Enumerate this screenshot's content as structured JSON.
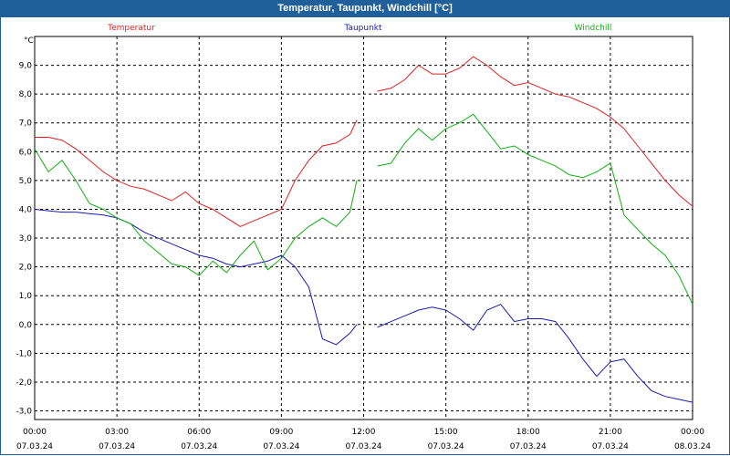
{
  "window": {
    "title": "Temperatur, Taupunkt, Windchill [°C]"
  },
  "colors": {
    "titlebar": "#1f5f9a",
    "temperature": "#e02020",
    "dewpoint": "#1a1ab0",
    "windchill": "#10b010",
    "grid": "#000000"
  },
  "chart_data": {
    "type": "line",
    "title": "Temperatur, Taupunkt, Windchill [°C]",
    "y_unit_label": "°C",
    "xlabel": "",
    "ylabel": "°C",
    "x_range_hours": [
      0,
      24
    ],
    "ylim": [
      -3.3,
      10.0
    ],
    "grid": true,
    "legend_placement": "top",
    "y_ticks": [
      "9,0",
      "8,0",
      "7,0",
      "6,0",
      "5,0",
      "4,0",
      "3,0",
      "2,0",
      "1,0",
      "0,0",
      "-1,0",
      "-2,0",
      "-3,0"
    ],
    "y_tick_values": [
      9,
      8,
      7,
      6,
      5,
      4,
      3,
      2,
      1,
      0,
      -1,
      -2,
      -3
    ],
    "x_ticks": [
      {
        "time": "00:00",
        "date": "07.03.24",
        "hour": 0
      },
      {
        "time": "03:00",
        "date": "07.03.24",
        "hour": 3
      },
      {
        "time": "06:00",
        "date": "07.03.24",
        "hour": 6
      },
      {
        "time": "09:00",
        "date": "07.03.24",
        "hour": 9
      },
      {
        "time": "12:00",
        "date": "07.03.24",
        "hour": 12
      },
      {
        "time": "15:00",
        "date": "07.03.24",
        "hour": 15
      },
      {
        "time": "18:00",
        "date": "07.03.24",
        "hour": 18
      },
      {
        "time": "21:00",
        "date": "07.03.24",
        "hour": 21
      },
      {
        "time": "00:00",
        "date": "08.03.24",
        "hour": 24
      }
    ],
    "series": [
      {
        "name": "Temperatur",
        "color": "#e02020",
        "points": [
          [
            0.0,
            6.5
          ],
          [
            0.5,
            6.5
          ],
          [
            1.0,
            6.4
          ],
          [
            1.5,
            6.1
          ],
          [
            2.0,
            5.7
          ],
          [
            2.5,
            5.3
          ],
          [
            3.0,
            5.0
          ],
          [
            3.5,
            4.8
          ],
          [
            4.0,
            4.7
          ],
          [
            4.5,
            4.5
          ],
          [
            5.0,
            4.3
          ],
          [
            5.5,
            4.6
          ],
          [
            6.0,
            4.2
          ],
          [
            6.5,
            4.0
          ],
          [
            7.0,
            3.7
          ],
          [
            7.5,
            3.4
          ],
          [
            8.0,
            3.6
          ],
          [
            8.5,
            3.8
          ],
          [
            9.0,
            4.0
          ],
          [
            9.5,
            5.0
          ],
          [
            10.0,
            5.7
          ],
          [
            10.5,
            6.2
          ],
          [
            11.0,
            6.3
          ],
          [
            11.5,
            6.6
          ],
          [
            11.75,
            7.1
          ],
          null,
          [
            12.5,
            8.1
          ],
          [
            13.0,
            8.2
          ],
          [
            13.5,
            8.5
          ],
          [
            14.0,
            9.0
          ],
          [
            14.5,
            8.7
          ],
          [
            15.0,
            8.7
          ],
          [
            15.5,
            8.9
          ],
          [
            16.0,
            9.3
          ],
          [
            16.5,
            9.0
          ],
          [
            17.0,
            8.6
          ],
          [
            17.5,
            8.3
          ],
          [
            18.0,
            8.4
          ],
          [
            18.5,
            8.2
          ],
          [
            19.0,
            8.0
          ],
          [
            19.5,
            7.9
          ],
          [
            20.0,
            7.7
          ],
          [
            20.5,
            7.5
          ],
          [
            21.0,
            7.2
          ],
          [
            21.5,
            6.8
          ],
          [
            22.0,
            6.2
          ],
          [
            22.5,
            5.6
          ],
          [
            23.0,
            5.0
          ],
          [
            23.5,
            4.5
          ],
          [
            24.0,
            4.1
          ]
        ]
      },
      {
        "name": "Taupunkt",
        "color": "#1a1ab0",
        "points": [
          [
            0.0,
            4.0
          ],
          [
            0.5,
            3.95
          ],
          [
            1.0,
            3.9
          ],
          [
            1.5,
            3.9
          ],
          [
            2.0,
            3.85
          ],
          [
            2.5,
            3.8
          ],
          [
            3.0,
            3.7
          ],
          [
            3.5,
            3.5
          ],
          [
            4.0,
            3.2
          ],
          [
            4.5,
            3.0
          ],
          [
            5.0,
            2.8
          ],
          [
            5.5,
            2.6
          ],
          [
            6.0,
            2.4
          ],
          [
            6.5,
            2.3
          ],
          [
            7.0,
            2.1
          ],
          [
            7.5,
            2.0
          ],
          [
            8.0,
            2.1
          ],
          [
            8.5,
            2.2
          ],
          [
            9.0,
            2.4
          ],
          [
            9.5,
            2.0
          ],
          [
            10.0,
            1.3
          ],
          [
            10.5,
            -0.5
          ],
          [
            11.0,
            -0.7
          ],
          [
            11.5,
            -0.3
          ],
          [
            11.75,
            0.0
          ],
          null,
          [
            12.5,
            -0.1
          ],
          [
            13.0,
            0.1
          ],
          [
            13.5,
            0.3
          ],
          [
            14.0,
            0.5
          ],
          [
            14.5,
            0.6
          ],
          [
            15.0,
            0.5
          ],
          [
            15.5,
            0.2
          ],
          [
            16.0,
            -0.2
          ],
          [
            16.5,
            0.5
          ],
          [
            17.0,
            0.7
          ],
          [
            17.5,
            0.1
          ],
          [
            18.0,
            0.2
          ],
          [
            18.5,
            0.2
          ],
          [
            19.0,
            0.1
          ],
          [
            19.5,
            -0.5
          ],
          [
            20.0,
            -1.2
          ],
          [
            20.5,
            -1.8
          ],
          [
            21.0,
            -1.3
          ],
          [
            21.5,
            -1.2
          ],
          [
            22.0,
            -1.8
          ],
          [
            22.5,
            -2.3
          ],
          [
            23.0,
            -2.5
          ],
          [
            23.5,
            -2.6
          ],
          [
            24.0,
            -2.7
          ]
        ]
      },
      {
        "name": "Windchill",
        "color": "#10b010",
        "points": [
          [
            0.0,
            6.1
          ],
          [
            0.5,
            5.3
          ],
          [
            1.0,
            5.7
          ],
          [
            1.5,
            5.0
          ],
          [
            2.0,
            4.2
          ],
          [
            2.5,
            4.0
          ],
          [
            3.0,
            3.7
          ],
          [
            3.5,
            3.5
          ],
          [
            4.0,
            2.9
          ],
          [
            4.5,
            2.5
          ],
          [
            5.0,
            2.1
          ],
          [
            5.5,
            2.0
          ],
          [
            6.0,
            1.7
          ],
          [
            6.5,
            2.2
          ],
          [
            7.0,
            1.8
          ],
          [
            7.5,
            2.4
          ],
          [
            8.0,
            2.9
          ],
          [
            8.5,
            1.9
          ],
          [
            9.0,
            2.3
          ],
          [
            9.5,
            3.0
          ],
          [
            10.0,
            3.4
          ],
          [
            10.5,
            3.7
          ],
          [
            11.0,
            3.4
          ],
          [
            11.5,
            3.9
          ],
          [
            11.75,
            5.0
          ],
          null,
          [
            12.5,
            5.5
          ],
          [
            13.0,
            5.6
          ],
          [
            13.5,
            6.3
          ],
          [
            14.0,
            6.8
          ],
          [
            14.5,
            6.4
          ],
          [
            15.0,
            6.8
          ],
          [
            15.5,
            7.0
          ],
          [
            16.0,
            7.3
          ],
          [
            16.5,
            6.7
          ],
          [
            17.0,
            6.1
          ],
          [
            17.5,
            6.2
          ],
          [
            18.0,
            5.9
          ],
          [
            18.5,
            5.7
          ],
          [
            19.0,
            5.5
          ],
          [
            19.5,
            5.2
          ],
          [
            20.0,
            5.1
          ],
          [
            20.5,
            5.3
          ],
          [
            21.0,
            5.6
          ],
          [
            21.5,
            3.8
          ],
          [
            22.0,
            3.3
          ],
          [
            22.5,
            2.8
          ],
          [
            23.0,
            2.4
          ],
          [
            23.5,
            1.7
          ],
          [
            24.0,
            0.7
          ]
        ]
      }
    ]
  }
}
